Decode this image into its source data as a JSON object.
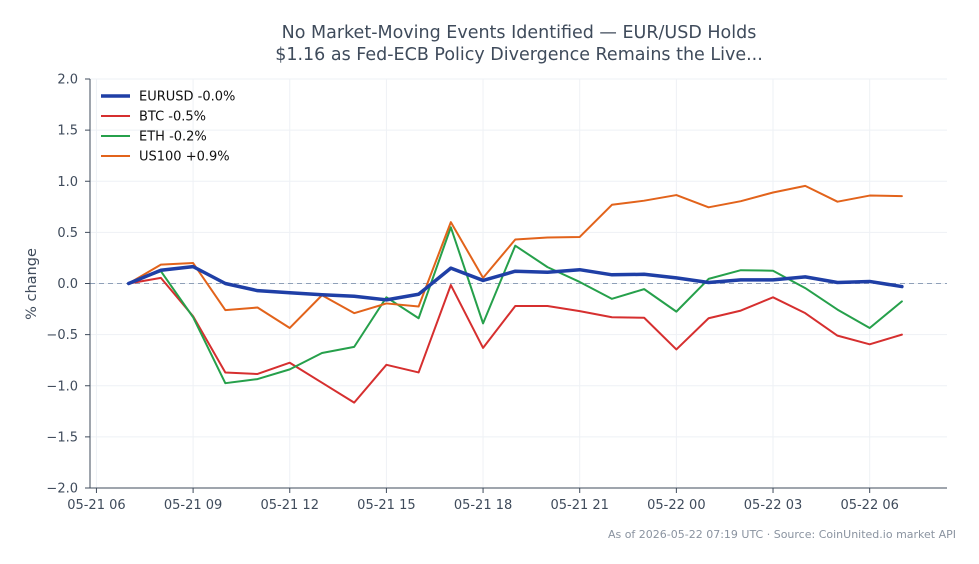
{
  "chart_data": {
    "type": "line",
    "title_lines": [
      "No Market-Moving Events Identified — EUR/USD Holds",
      "$1.16 as Fed-ECB Policy Divergence Remains the Live..."
    ],
    "ylabel": "% change",
    "xlabel": "",
    "ylim": [
      -2.0,
      2.0
    ],
    "y_ticks": [
      2.0,
      1.5,
      1.0,
      0.5,
      0.0,
      -0.5,
      -1.0,
      -1.5,
      -2.0
    ],
    "y_tick_labels": [
      "2.0",
      "1.5",
      "1.0",
      "0.5",
      "0.0",
      "−0.5",
      "−1.0",
      "−1.5",
      "−2.0"
    ],
    "x_range_hours": [
      -0.2,
      26.4
    ],
    "x_tick_hours": [
      0,
      3,
      6,
      9,
      12,
      15,
      18,
      21,
      24
    ],
    "x_tick_labels": [
      "05-21 06",
      "05-21 09",
      "05-21 12",
      "05-21 15",
      "05-21 18",
      "05-21 21",
      "05-22 00",
      "05-22 03",
      "05-22 06"
    ],
    "x_hours": [
      1,
      2,
      3,
      4,
      5,
      6,
      7,
      8,
      9,
      10,
      11,
      12,
      13,
      14,
      15,
      16,
      17,
      18,
      19,
      20,
      21,
      22,
      23,
      24,
      25
    ],
    "zero_line": true,
    "grid": true,
    "legend_position": "top-left",
    "series": [
      {
        "name": "EURUSD -0.0%",
        "color": "#1f3fa6",
        "width": 3.5,
        "values": [
          0.0,
          0.13,
          0.165,
          0.0,
          -0.07,
          -0.09,
          -0.11,
          -0.125,
          -0.16,
          -0.105,
          0.15,
          0.03,
          0.12,
          0.11,
          0.135,
          0.085,
          0.09,
          0.055,
          0.01,
          0.035,
          0.035,
          0.065,
          0.01,
          0.02,
          -0.03
        ]
      },
      {
        "name": "BTC -0.5%",
        "color": "#d62f2f",
        "width": 2,
        "values": [
          0.0,
          0.055,
          -0.32,
          -0.87,
          -0.885,
          -0.775,
          -0.97,
          -1.165,
          -0.795,
          -0.87,
          -0.015,
          -0.63,
          -0.22,
          -0.22,
          -0.27,
          -0.33,
          -0.335,
          -0.645,
          -0.34,
          -0.265,
          -0.135,
          -0.29,
          -0.51,
          -0.595,
          -0.5
        ]
      },
      {
        "name": "ETH -0.2%",
        "color": "#26a04b",
        "width": 2,
        "values": [
          0.0,
          0.12,
          -0.33,
          -0.975,
          -0.935,
          -0.84,
          -0.68,
          -0.62,
          -0.135,
          -0.34,
          0.55,
          -0.39,
          0.37,
          0.16,
          0.015,
          -0.15,
          -0.055,
          -0.275,
          0.045,
          0.13,
          0.125,
          -0.045,
          -0.255,
          -0.435,
          -0.175
        ]
      },
      {
        "name": "US100 +0.9%",
        "color": "#e2631b",
        "width": 2,
        "values": [
          0.0,
          0.185,
          0.2,
          -0.26,
          -0.235,
          -0.435,
          -0.115,
          -0.29,
          -0.195,
          -0.225,
          0.6,
          0.055,
          0.43,
          0.45,
          0.455,
          0.77,
          0.81,
          0.865,
          0.745,
          0.805,
          0.89,
          0.955,
          0.8,
          0.86,
          0.855
        ]
      }
    ]
  },
  "footer": "As of 2026-05-22 07:19 UTC · Source: CoinUnited.io market API"
}
